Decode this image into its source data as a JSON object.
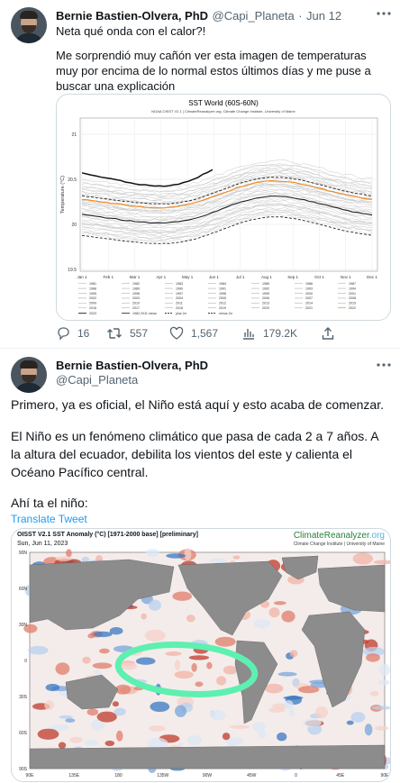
{
  "tweet1": {
    "author_name": "Bernie Bastien-Olvera, PhD",
    "handle": "@Capi_Planeta",
    "separator": "·",
    "date": "Jun 12",
    "text_line1": "Neta qué onda con el calor?!",
    "text_para2": "Me sorprendió muy cañón ver esta imagen de temperaturas muy por encima de lo normal estos últimos días y me puse a buscar una explicación",
    "chart": {
      "title": "SST World (60S-60N)",
      "subtitle": "NOAA OISST V2.1 | ClimateReanalyzer.org, Climate Change Institute, University of Maine",
      "ylabel": "Temperature (°C)",
      "yticks": [
        "21",
        "20.5",
        "20",
        "19.5"
      ],
      "months": [
        "Jan 1",
        "Feb 1",
        "Mar 1",
        "Apr 1",
        "May 1",
        "Jun 1",
        "Jul 1",
        "Aug 1",
        "Sep 1",
        "Oct 1",
        "Nov 1",
        "Dec 1"
      ],
      "legend_years": [
        "1981",
        "1982",
        "1983",
        "1984",
        "1985",
        "1986",
        "1987",
        "1988",
        "1989",
        "1990",
        "1991",
        "1992",
        "1993",
        "1994",
        "1995",
        "1996",
        "1997",
        "1998",
        "1999",
        "2000",
        "2001",
        "2002",
        "2003",
        "2004",
        "2005",
        "2006",
        "2007",
        "2008",
        "2009",
        "2010",
        "2011",
        "2012",
        "2013",
        "2014",
        "2015",
        "2016",
        "2017",
        "2018",
        "2019",
        "2020",
        "2021",
        "2022"
      ],
      "legend_specials": [
        "2023",
        "1982-2011 mean",
        "plus 2σ",
        "minus 2σ"
      ],
      "colors": {
        "highlight_2023": "#111111",
        "highlight_2022": "#f28a1e",
        "mean": "#222222",
        "other_years": "#c8c8c8"
      }
    },
    "actions": {
      "replies": "16",
      "retweets": "557",
      "likes": "1,567",
      "views": "179.2K"
    }
  },
  "tweet2": {
    "author_name": "Bernie Bastien-Olvera, PhD",
    "handle": "@Capi_Planeta",
    "para1": "Primero, ya es oficial, el Niño está aquí y esto acaba de comenzar.",
    "para2": "El Niño es un fenómeno climático que pasa de cada 2 a 7 años. A la altura del ecuador, debilita los vientos del este y calienta el Océano Pacífico central.",
    "para3": "Ahí ta el niño:",
    "translate": "Translate Tweet",
    "map": {
      "title": "OISST V2.1 SST Anomaly (°C) [1971-2000 base] [preliminary]",
      "date": "Sun, Jun 11, 2023",
      "brand_a": "ClimateReanalyzer",
      "brand_b": ".org",
      "brand_sub": "Climate Change Institute | University of Maine",
      "lat_labels": [
        "90N",
        "60N",
        "30N",
        "0",
        "30S",
        "60S",
        "90S"
      ],
      "lon_labels": [
        "90E",
        "135E",
        "180",
        "135W",
        "90W",
        "45W",
        "0",
        "45E",
        "90E"
      ],
      "colors": {
        "land": "#8c8c8c",
        "warm": "#c0392b",
        "cool": "#3a78c2",
        "highlight_ring": "#5ef0b0"
      }
    },
    "accent": "#1d9bf0"
  }
}
